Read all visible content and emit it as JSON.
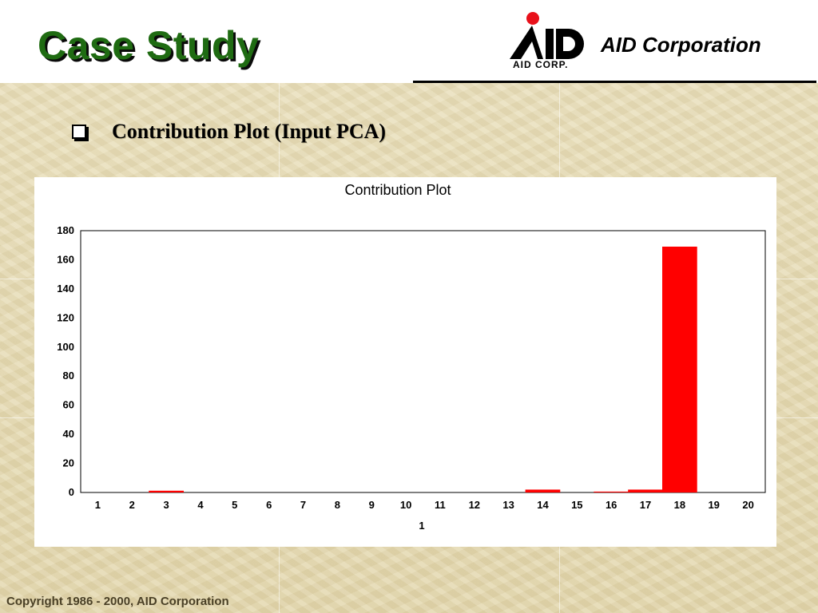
{
  "header": {
    "title": "Case Study",
    "company": "AID Corporation",
    "logo_caption": "AID    CORP.",
    "logo_text": "AID"
  },
  "bullet": {
    "text": "Contribution Plot (Input PCA)"
  },
  "footer": {
    "copyright": "Copyright 1986 - 2000,  AID Corporation"
  },
  "colors": {
    "title_green": "#1f6b12",
    "bar_red": "#ff0000",
    "logo_red": "#e8101a"
  },
  "chart_data": {
    "type": "bar",
    "title": "Contribution Plot",
    "xlabel": "1",
    "ylabel": "",
    "categories": [
      "1",
      "2",
      "3",
      "4",
      "5",
      "6",
      "7",
      "8",
      "9",
      "10",
      "11",
      "12",
      "13",
      "14",
      "15",
      "16",
      "17",
      "18",
      "19",
      "20"
    ],
    "values": [
      0,
      0,
      1.2,
      0,
      0,
      0,
      0,
      0,
      0,
      0,
      0,
      0,
      0,
      2.0,
      0,
      0.6,
      2.0,
      169,
      0,
      0
    ],
    "ylim": [
      0,
      180
    ],
    "yticks": [
      0,
      20,
      40,
      60,
      80,
      100,
      120,
      140,
      160,
      180
    ],
    "grid": false,
    "legend": "none"
  }
}
